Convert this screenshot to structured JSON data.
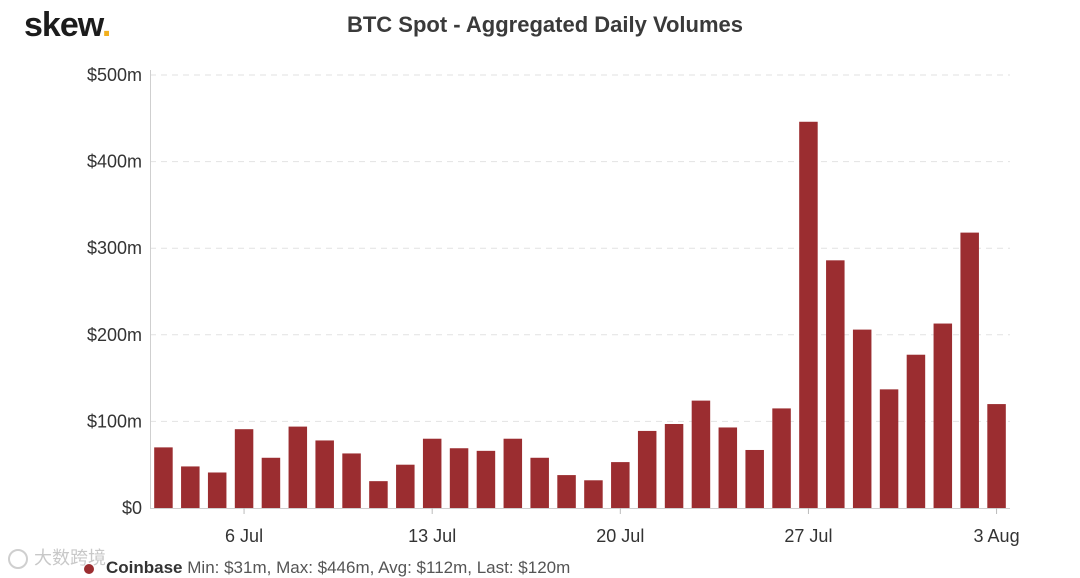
{
  "brand": {
    "name": "skew",
    "dot": "."
  },
  "watermark": {
    "text": "大数跨境"
  },
  "legend": {
    "name": "Coinbase",
    "stats": "Min: $31m, Max: $446m, Avg: $112m, Last: $120m",
    "color": "#9b2d30"
  },
  "chart_data": {
    "type": "bar",
    "title": "BTC Spot - Aggregated Daily Volumes",
    "xlabel": "",
    "ylabel": "",
    "ylim": [
      0,
      500
    ],
    "yticks": [
      0,
      100,
      200,
      300,
      400,
      500
    ],
    "ytick_labels": [
      "$0",
      "$100m",
      "$200m",
      "$300m",
      "$400m",
      "$500m"
    ],
    "grid": "horizontal-dashed",
    "categories": [
      "3 Jul",
      "4 Jul",
      "5 Jul",
      "6 Jul",
      "7 Jul",
      "8 Jul",
      "9 Jul",
      "10 Jul",
      "11 Jul",
      "12 Jul",
      "13 Jul",
      "14 Jul",
      "15 Jul",
      "16 Jul",
      "17 Jul",
      "18 Jul",
      "19 Jul",
      "20 Jul",
      "21 Jul",
      "22 Jul",
      "23 Jul",
      "24 Jul",
      "25 Jul",
      "26 Jul",
      "27 Jul",
      "28 Jul",
      "29 Jul",
      "30 Jul",
      "31 Jul",
      "1 Aug",
      "2 Aug",
      "3 Aug"
    ],
    "xtick_labels": [
      {
        "label": "6 Jul",
        "index": 3
      },
      {
        "label": "13 Jul",
        "index": 10
      },
      {
        "label": "20 Jul",
        "index": 17
      },
      {
        "label": "27 Jul",
        "index": 24
      },
      {
        "label": "3 Aug",
        "index": 31
      }
    ],
    "series": [
      {
        "name": "Coinbase",
        "color": "#9b2d30",
        "values": [
          70,
          48,
          41,
          91,
          58,
          94,
          78,
          63,
          31,
          50,
          80,
          69,
          66,
          80,
          58,
          38,
          32,
          53,
          89,
          97,
          124,
          93,
          67,
          115,
          446,
          286,
          206,
          137,
          177,
          213,
          318,
          120
        ]
      }
    ]
  }
}
